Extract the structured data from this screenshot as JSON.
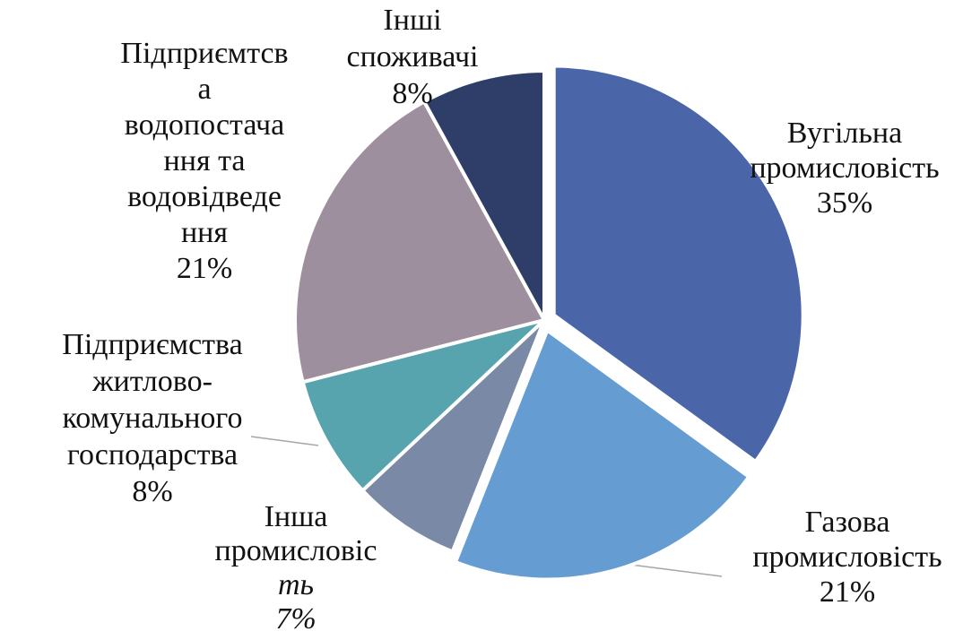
{
  "chart_data": {
    "type": "pie",
    "title": "",
    "legend": "none",
    "start_angle_deg": 90,
    "direction": "clockwise",
    "slices": [
      {
        "name": "Вугільна промисловість",
        "value": 35,
        "percent_label": "35%",
        "label_lines": [
          "Вугільна",
          "промисловість"
        ],
        "color": "#4A66A8",
        "exploded": true
      },
      {
        "name": "Газова промисловість",
        "value": 21,
        "percent_label": "21%",
        "label_lines": [
          "Газова",
          "промисловість"
        ],
        "color": "#659DD2",
        "exploded": true
      },
      {
        "name": "Інша промисловість",
        "value": 7,
        "percent_label": "7%",
        "label_lines": [
          "Інша",
          "промисловіс",
          "ть"
        ],
        "color": "#7A89A6",
        "exploded": false
      },
      {
        "name": "Підприємства житлово-комунального господарства",
        "value": 8,
        "percent_label": "8%",
        "label_lines": [
          "Підприємства",
          "житлово-",
          "комунального",
          "господарства"
        ],
        "color": "#58A4AE",
        "exploded": false
      },
      {
        "name": "Підприємтсва водопостачання та водовідведення",
        "value": 21,
        "percent_label": "21%",
        "label_lines": [
          "Підприємтсв",
          "а",
          "водопостача",
          "ння та",
          "водовідведе",
          "ння"
        ],
        "color": "#9E8F9E",
        "exploded": false
      },
      {
        "name": "Інші споживачі",
        "value": 8,
        "percent_label": "8%",
        "label_lines": [
          "Інші",
          "споживачі"
        ],
        "color": "#2E3E68",
        "exploded": false
      }
    ]
  }
}
